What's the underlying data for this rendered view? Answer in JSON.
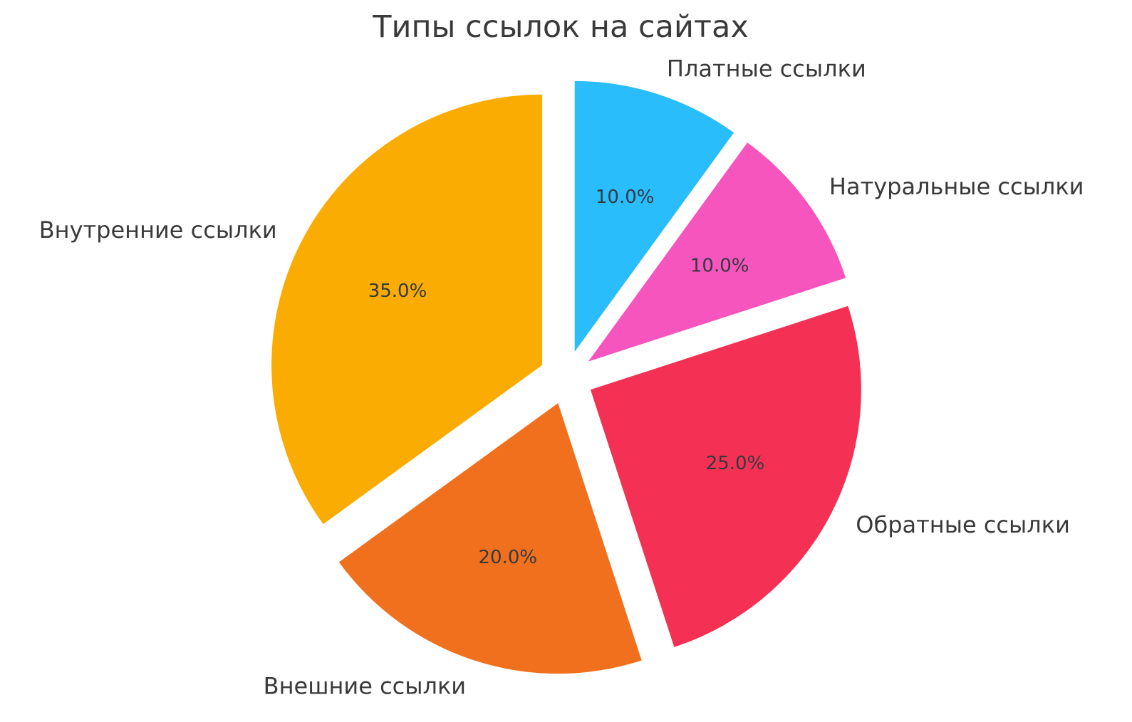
{
  "chart_data": {
    "type": "pie",
    "title": "Типы ссылок на сайтах",
    "categories": [
      "Платные ссылки",
      "Натуральные ссылки",
      "Обратные ссылки",
      "Внешние ссылки",
      "Внутренние ссылки"
    ],
    "values": [
      10,
      10,
      25,
      20,
      35
    ],
    "slices": [
      {
        "label": "Платные ссылки",
        "value": 10,
        "pct_label": "10.0%",
        "color": "#29BDFB"
      },
      {
        "label": "Натуральные ссылки",
        "value": 10,
        "pct_label": "10.0%",
        "color": "#F655BE"
      },
      {
        "label": "Обратные ссылки",
        "value": 25,
        "pct_label": "25.0%",
        "color": "#F43154"
      },
      {
        "label": "Внешние ссылки",
        "value": 20,
        "pct_label": "20.0%",
        "color": "#F1701E"
      },
      {
        "label": "Внутренние ссылки",
        "value": 35,
        "pct_label": "35.0%",
        "color": "#FBAC02"
      }
    ],
    "layout": {
      "start_angle_deg": 90,
      "direction": "clockwise",
      "explode": 0.1,
      "label_distance": 1.1,
      "pct_distance": 0.6,
      "legend": "none",
      "background": "#FFFFFF",
      "text_color": "#3A3A3A"
    }
  }
}
